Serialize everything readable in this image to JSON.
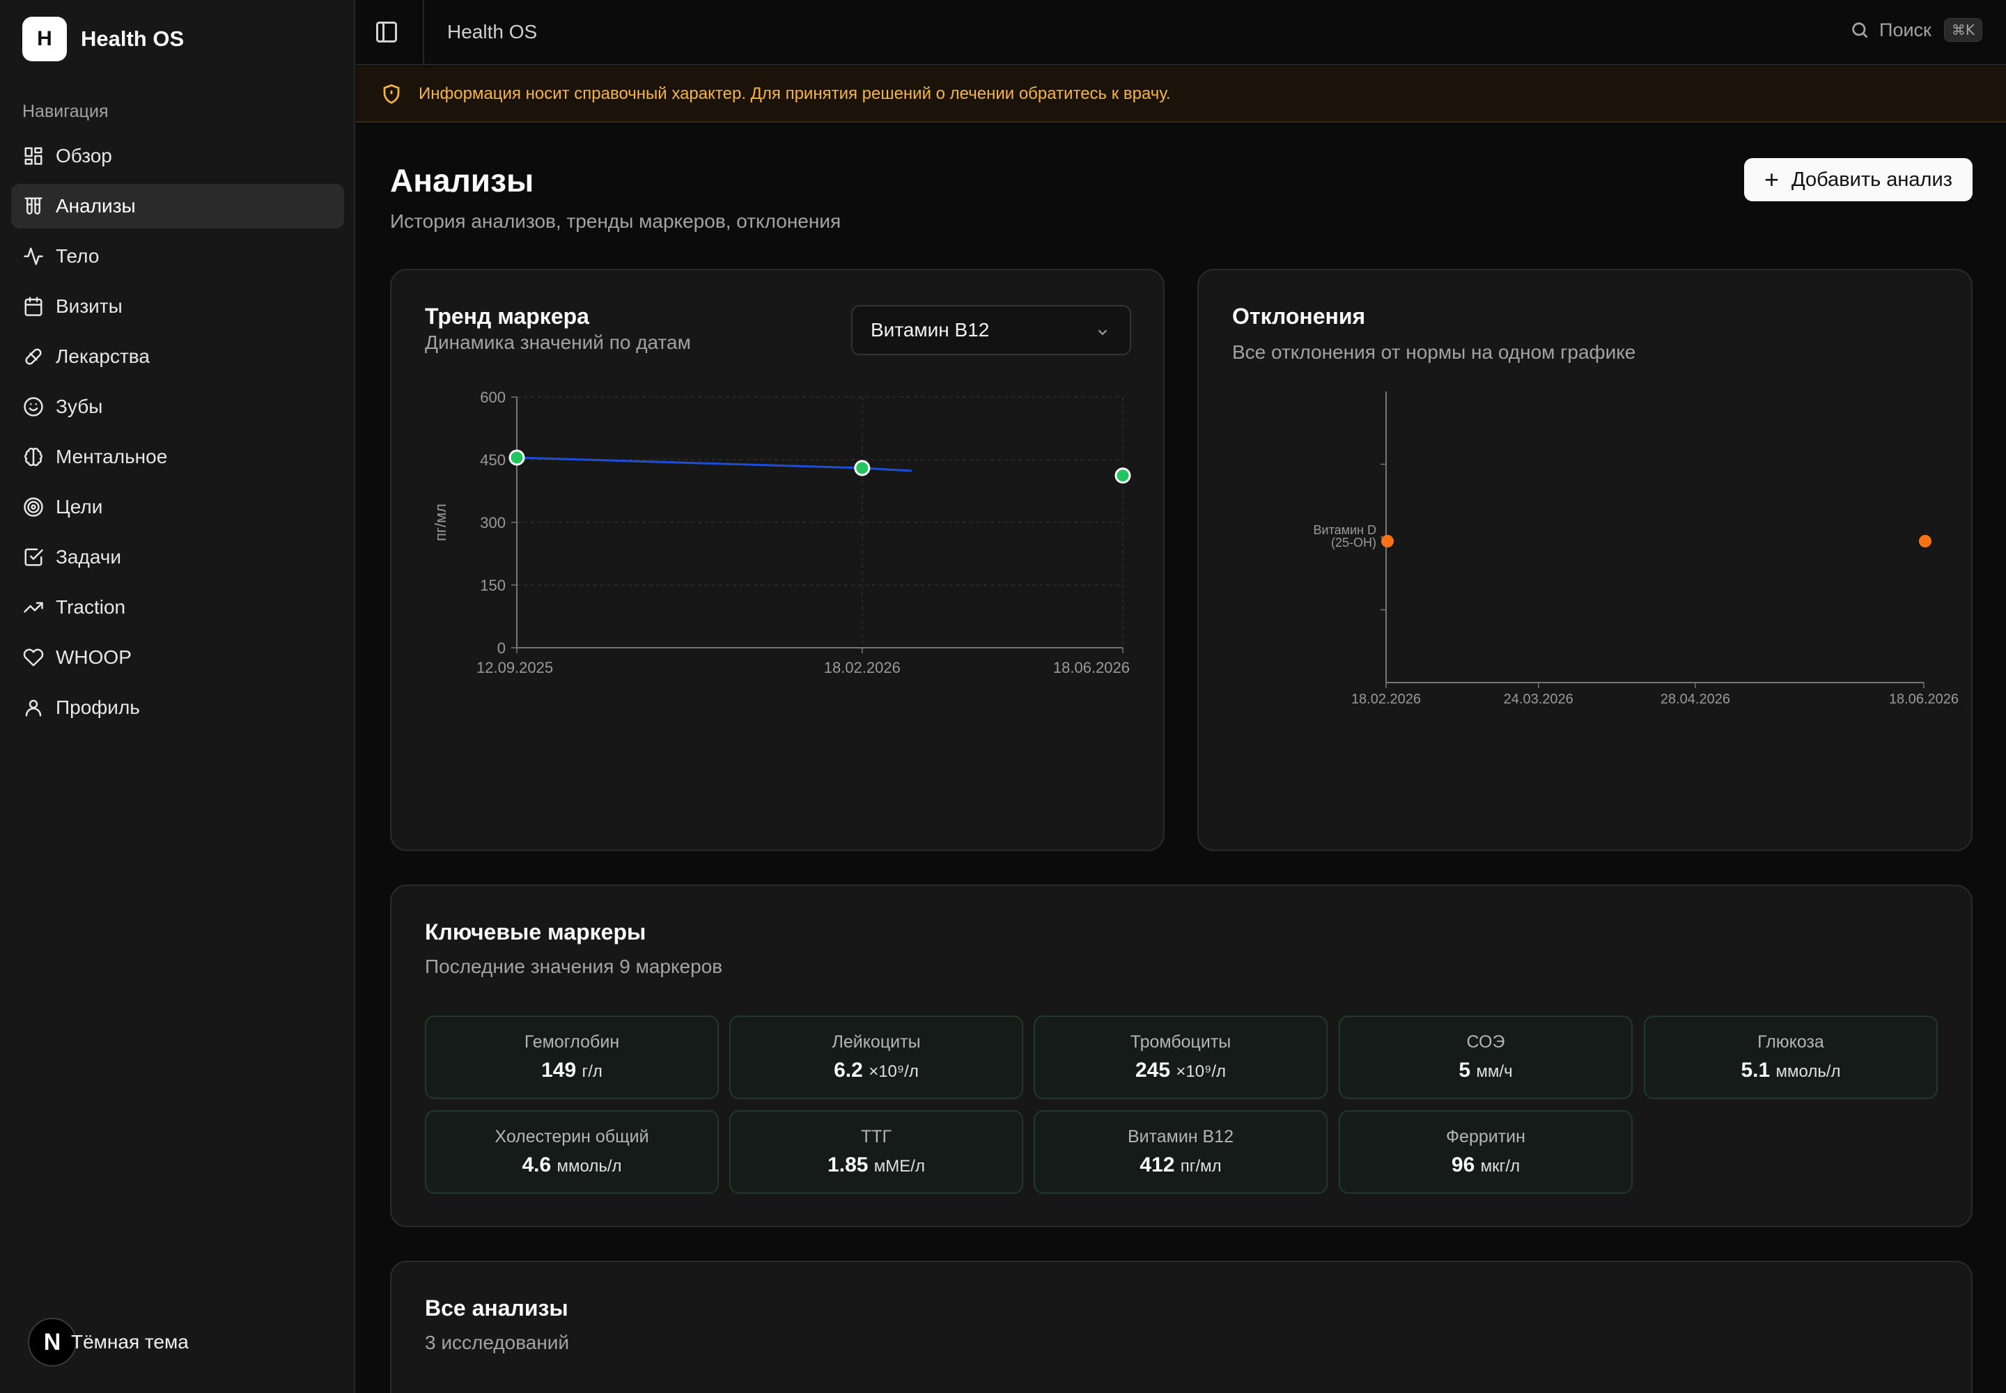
{
  "app": {
    "brand_letter": "H",
    "brand_name": "Health OS"
  },
  "sidebar": {
    "group_label": "Навигация",
    "items": [
      {
        "label": "Обзор",
        "icon": "dashboard-icon"
      },
      {
        "label": "Анализы",
        "icon": "test-tubes-icon",
        "active": true
      },
      {
        "label": "Тело",
        "icon": "activity-icon"
      },
      {
        "label": "Визиты",
        "icon": "calendar-icon"
      },
      {
        "label": "Лекарства",
        "icon": "pill-icon"
      },
      {
        "label": "Зубы",
        "icon": "smile-icon"
      },
      {
        "label": "Ментальное",
        "icon": "brain-icon"
      },
      {
        "label": "Цели",
        "icon": "target-icon"
      },
      {
        "label": "Задачи",
        "icon": "checkbox-icon"
      },
      {
        "label": "Traction",
        "icon": "trending-up-icon"
      },
      {
        "label": "WHOOP",
        "icon": "heart-icon"
      },
      {
        "label": "Профиль",
        "icon": "user-icon"
      }
    ],
    "theme_badge": "N",
    "theme_label": "Тёмная тема"
  },
  "header": {
    "title": "Health OS",
    "search_label": "Поиск",
    "search_shortcut": "⌘K"
  },
  "disclaimer": "Информация носит справочный характер. Для принятия решений о лечении обратитесь к врачу.",
  "page": {
    "title": "Анализы",
    "subtitle": "История анализов, тренды маркеров, отклонения",
    "add_button": "Добавить анализ"
  },
  "trend_card": {
    "title": "Тренд маркера",
    "subtitle": "Динамика значений по датам",
    "selected_marker": "Витамин B12"
  },
  "deviations_card": {
    "title": "Отклонения",
    "subtitle": "Все отклонения от нормы на одном графике"
  },
  "markers_card": {
    "title": "Ключевые маркеры",
    "subtitle": "Последние значения 9 маркеров",
    "items": [
      {
        "name": "Гемоглобин",
        "value": "149",
        "unit": "г/л"
      },
      {
        "name": "Лейкоциты",
        "value": "6.2",
        "unit": "×10⁹/л"
      },
      {
        "name": "Тромбоциты",
        "value": "245",
        "unit": "×10⁹/л"
      },
      {
        "name": "СОЭ",
        "value": "5",
        "unit": "мм/ч"
      },
      {
        "name": "Глюкоза",
        "value": "5.1",
        "unit": "ммоль/л"
      },
      {
        "name": "Холестерин общий",
        "value": "4.6",
        "unit": "ммоль/л"
      },
      {
        "name": "ТТГ",
        "value": "1.85",
        "unit": "мМЕ/л"
      },
      {
        "name": "Витамин B12",
        "value": "412",
        "unit": "пг/мл"
      },
      {
        "name": "Ферритин",
        "value": "96",
        "unit": "мкг/л"
      }
    ]
  },
  "all_card": {
    "title": "Все анализы",
    "subtitle": "3 исследований"
  },
  "colors": {
    "trend_line": "#1d4ed8",
    "trend_point": "#22c55e",
    "deviation_point": "#f97316",
    "warning": "#f5b540"
  },
  "chart_data": [
    {
      "type": "line",
      "ylabel": "пг/мл",
      "ylim": [
        0,
        600
      ],
      "yticks": [
        "0",
        "150",
        "300",
        "450",
        "600"
      ],
      "xticks": [
        "12.09.2025",
        "18.02.2026",
        "18.06.2026"
      ],
      "points": [
        {
          "x": "12.09.2025",
          "y": 455
        },
        {
          "x": "18.02.2026",
          "y": 430
        },
        {
          "x": "18.06.2026",
          "y": 412
        }
      ],
      "grid": true
    },
    {
      "type": "scatter",
      "xticks": [
        "18.02.2026",
        "24.03.2026",
        "28.04.2026",
        "18.06.2026"
      ],
      "categories": [
        "Витамин D (25-OH)"
      ],
      "points": [
        {
          "x": "18.02.2026",
          "category": "Витамин D (25-OH)"
        },
        {
          "x": "18.06.2026",
          "category": "Витамин D (25-OH)"
        }
      ],
      "grid": false
    }
  ]
}
